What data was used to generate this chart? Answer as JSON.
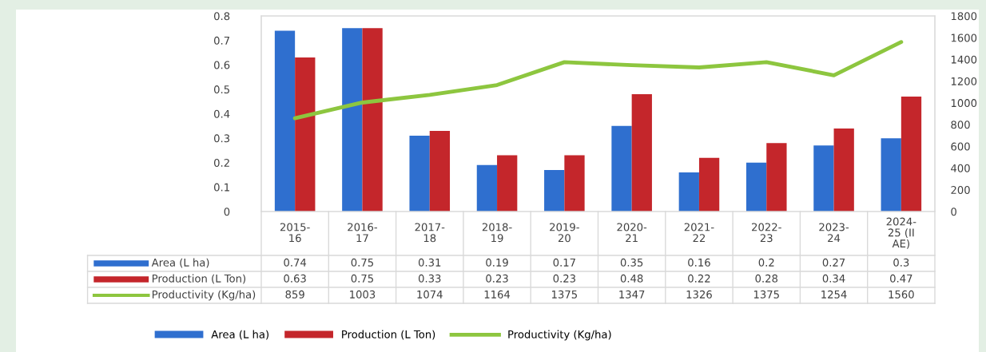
{
  "chart_data": {
    "type": "bar",
    "categories": [
      "2015-16",
      "2016-17",
      "2017-18",
      "2018-19",
      "2019-20",
      "2020-21",
      "2021-22",
      "2022-23",
      "2023-24",
      "2024-25 (II AE)"
    ],
    "series": [
      {
        "name": "Area (L ha)",
        "color": "#2f6fcf",
        "values": [
          0.74,
          0.75,
          0.31,
          0.19,
          0.17,
          0.35,
          0.16,
          0.2,
          0.27,
          0.3
        ]
      },
      {
        "name": "Production (L Ton)",
        "color": "#c4262b",
        "values": [
          0.63,
          0.75,
          0.33,
          0.23,
          0.23,
          0.48,
          0.22,
          0.28,
          0.34,
          0.47
        ]
      },
      {
        "name": "Productivity (Kg/ha)",
        "color": "#8dc63f",
        "type": "line",
        "axis": "y2",
        "values": [
          859,
          1003,
          1074,
          1164,
          1375,
          1347,
          1326,
          1375,
          1254,
          1560
        ]
      }
    ],
    "ylim": [
      0,
      0.8
    ],
    "yticks": [
      {
        "value": 0,
        "label": "0"
      },
      0.1,
      0.2,
      0.3,
      0.4,
      0.5,
      0.6,
      0.7,
      0.8
    ],
    "y2lim": [
      0,
      1800
    ],
    "y2ticks": [
      0,
      200,
      400,
      600,
      800,
      1000,
      1200,
      1400,
      1600,
      1800
    ],
    "data_labels": true,
    "legend": "bottom",
    "grid": false
  }
}
